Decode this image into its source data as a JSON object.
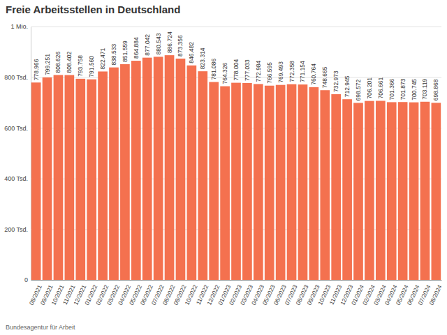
{
  "chart_data": {
    "type": "bar",
    "title": "Freie Arbeitsstellen in Deutschland",
    "source": "Bundesagentur für Arbeit",
    "categories": [
      "08/2021",
      "09/2021",
      "10/2021",
      "11/2021",
      "12/2021",
      "01/2022",
      "02/2022",
      "03/2022",
      "04/2022",
      "05/2022",
      "06/2022",
      "07/2022",
      "08/2022",
      "09/2022",
      "10/2022",
      "11/2022",
      "12/2022",
      "01/2023",
      "02/2023",
      "03/2023",
      "04/2023",
      "05/2023",
      "06/2023",
      "07/2023",
      "08/2023",
      "09/2023",
      "10/2023",
      "11/2023",
      "12/2023",
      "01/2024",
      "02/2024",
      "03/2024",
      "04/2024",
      "05/2024",
      "06/2024",
      "07/2024",
      "08/2024"
    ],
    "values": [
      778966,
      799251,
      808626,
      808402,
      793758,
      791560,
      822471,
      838533,
      851559,
      864884,
      877042,
      880543,
      886724,
      873356,
      846482,
      823314,
      781086,
      764326,
      778004,
      777033,
      772984,
      766595,
      769493,
      772358,
      771154,
      760764,
      748665,
      732973,
      712945,
      698572,
      706201,
      706661,
      701366,
      701873,
      700745,
      703119,
      698868
    ],
    "value_labels": [
      "778.966",
      "799.251",
      "808.626",
      "808.402",
      "793.758",
      "791.560",
      "822.471",
      "838.533",
      "851.559",
      "864.884",
      "877.042",
      "880.543",
      "886.724",
      "873.356",
      "846.482",
      "823.314",
      "781.086",
      "764.326",
      "778.004",
      "777.033",
      "772.984",
      "766.595",
      "769.493",
      "772.358",
      "771.154",
      "760.764",
      "748.665",
      "732.973",
      "712.945",
      "698.572",
      "706.201",
      "706.661",
      "701.366",
      "701.873",
      "700.745",
      "703.119",
      "698.868"
    ],
    "color": "#f4714f",
    "ylim": [
      0,
      1000000
    ],
    "yticks": [
      0,
      {
        "value": 200000,
        "label": "200 Tsd."
      },
      {
        "value": 400000,
        "label": "400 Tsd."
      },
      {
        "value": 600000,
        "label": "600 Tsd."
      },
      {
        "value": 800000,
        "label": "800 Tsd."
      },
      {
        "value": 1000000,
        "label": "1 Mio."
      }
    ],
    "grid": true,
    "data_labels": true
  }
}
